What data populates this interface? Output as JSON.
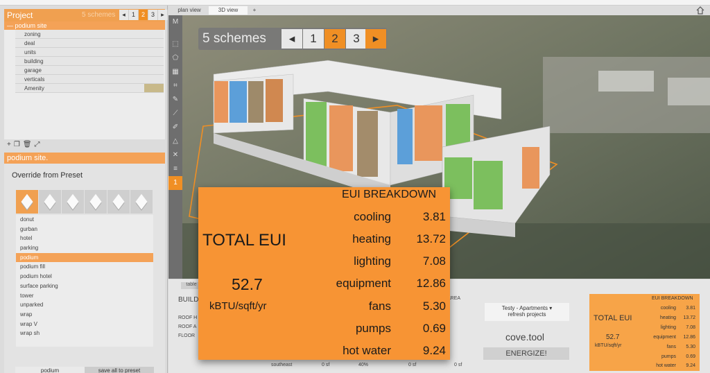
{
  "project_panel": {
    "title": "Project",
    "schemes_label": "5 schemes",
    "pager": {
      "prev": "◂",
      "pages": [
        "1",
        "2",
        "3"
      ],
      "active": "2",
      "next": "▸"
    },
    "tree_root": "— podium site",
    "tree_items": [
      "zoning",
      "deal",
      "units",
      "building",
      "garage",
      "verticals",
      "Amenity"
    ],
    "tool_icons": [
      "add-icon",
      "duplicate-icon",
      "delete-icon",
      "expand-icon"
    ]
  },
  "site_panel": {
    "title": "podium site.",
    "override_label": "Override from Preset",
    "presets": [
      "donut",
      "gurban",
      "hotel",
      "parking",
      "podium",
      "podium fill",
      "podium hotel",
      "surface parking",
      "tower",
      "unparked",
      "wrap",
      "wrap V",
      "wrap sh"
    ],
    "active_preset": "podium",
    "buttons": {
      "left": "podium",
      "right": "save all to preset"
    }
  },
  "view_tabs": {
    "plan": "plan view",
    "three_d": "3D view",
    "add": "+"
  },
  "scheme_pager": {
    "label": "5 schemes",
    "prev": "◂",
    "pages": [
      "1",
      "2",
      "3"
    ],
    "active": "2",
    "next": "▸"
  },
  "results": {
    "tab": "table",
    "heading": "BUILD",
    "rows": [
      "ROOF H",
      "ROOF A",
      "FLOOR"
    ],
    "area_label": "AREA",
    "footer": {
      "orientation": "southeast",
      "area1": "0 sf",
      "pct": "40%",
      "area2": "0 sf",
      "area3": "0 sf"
    },
    "project_select": "Testy - Apartments",
    "refresh": "refresh projects",
    "brand": "cove.tool",
    "energize": "ENERGIZE!"
  },
  "eui": {
    "total_label": "TOTAL EUI",
    "total_value": "52.7",
    "unit": "kBTU/sqft/yr",
    "breakdown_title": "EUI BREAKDOWN",
    "breakdown": [
      {
        "name": "cooling",
        "value": "3.81"
      },
      {
        "name": "heating",
        "value": "13.72"
      },
      {
        "name": "lighting",
        "value": "7.08"
      },
      {
        "name": "equipment",
        "value": "12.86"
      },
      {
        "name": "fans",
        "value": "5.30"
      },
      {
        "name": "pumps",
        "value": "0.69"
      },
      {
        "name": "hot water",
        "value": "9.24"
      }
    ]
  },
  "colors": {
    "accent": "#f08f24",
    "card": "#f79434",
    "header": "#f0a050"
  }
}
